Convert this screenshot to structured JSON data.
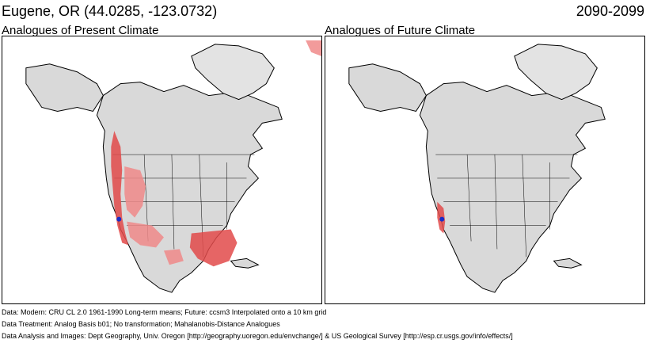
{
  "header": {
    "location": "Eugene, OR  (44.0285, -123.0732)",
    "period": "2090-2099"
  },
  "panels": [
    {
      "title": "Analogues of Present Climate",
      "analogue_regions": [
        "coast",
        "cascades",
        "great-basin",
        "california",
        "southeast",
        "plains"
      ]
    },
    {
      "title": "Analogues of Future Climate",
      "analogue_regions": [
        "coast-narrow"
      ]
    }
  ],
  "colors": {
    "land": "#d9d9d9",
    "ocean": "#ffffff",
    "border": "#000000",
    "analogue": "#f08a8a",
    "analogue_strong": "#e24a4a",
    "site_marker": "#1a2cc8"
  },
  "footer": {
    "line1": "Data:  Modern: CRU CL 2.0 1961-1990 Long-term means; Future: ccsm3 Interpolated onto a 10 km grid",
    "line2": "Data Treatment:  Analog Basis b01; No transformation; Mahalanobis-Distance Analogues",
    "line3": "Data Analysis and Images:  Dept Geography, Univ. Oregon [http://geography.uoregon.edu/envchange/] & US Geological Survey [http://esp.cr.usgs.gov/info/effects/]"
  }
}
